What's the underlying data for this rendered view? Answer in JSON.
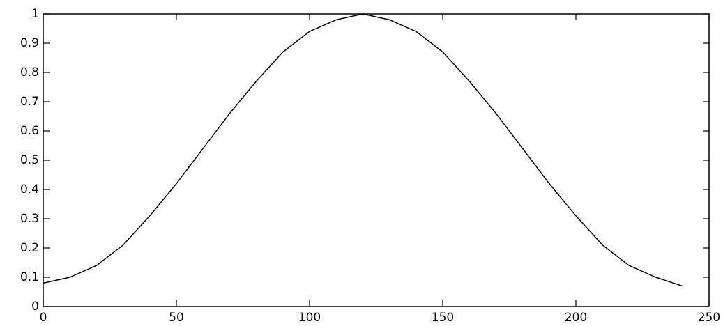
{
  "chart_data": {
    "type": "line",
    "x": [
      0,
      10,
      20,
      30,
      40,
      50,
      60,
      70,
      80,
      90,
      100,
      110,
      120,
      130,
      140,
      150,
      160,
      170,
      180,
      190,
      200,
      210,
      220,
      230,
      240
    ],
    "series": [
      {
        "color": "#000000",
        "values": [
          0.08,
          0.1,
          0.14,
          0.21,
          0.31,
          0.42,
          0.54,
          0.66,
          0.77,
          0.87,
          0.94,
          0.98,
          1.0,
          0.98,
          0.94,
          0.87,
          0.77,
          0.66,
          0.54,
          0.42,
          0.31,
          0.21,
          0.14,
          0.1,
          0.07
        ]
      }
    ],
    "xlim": [
      0,
      250
    ],
    "xticks": [
      0,
      50,
      100,
      150,
      200,
      250
    ],
    "ylim": [
      0,
      1
    ],
    "yticks": [
      0,
      0.1,
      0.2,
      0.3,
      0.4,
      0.5,
      0.6,
      0.7,
      0.8,
      0.9,
      1
    ]
  }
}
